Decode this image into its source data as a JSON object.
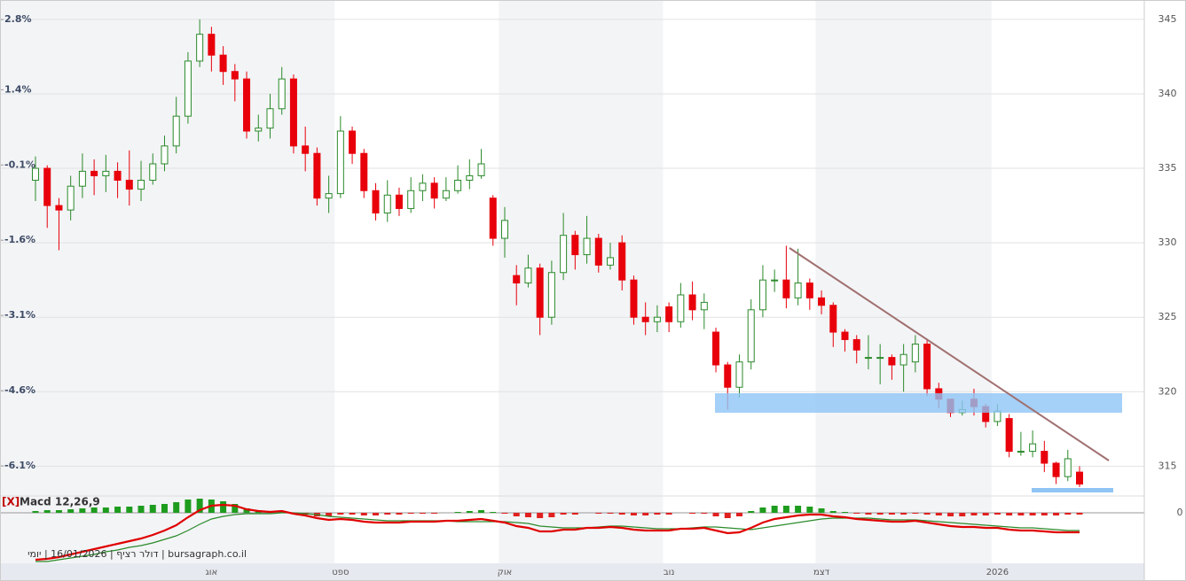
{
  "chart_data": {
    "type": "candlestick",
    "x": [
      null,
      null,
      null,
      null,
      null,
      null,
      null,
      null,
      null,
      null,
      null,
      null,
      null,
      null,
      null,
      "אוג",
      null,
      null,
      null,
      null,
      null,
      null,
      null,
      null,
      null,
      null,
      "ספט",
      null,
      null,
      null,
      null,
      null,
      null,
      null,
      null,
      null,
      null,
      null,
      null,
      null,
      "אוק",
      null,
      null,
      null,
      null,
      null,
      null,
      null,
      null,
      null,
      null,
      null,
      null,
      null,
      "נוב",
      null,
      null,
      null,
      null,
      null,
      null,
      null,
      null,
      null,
      null,
      null,
      null,
      "דצמ",
      null,
      null,
      null,
      null,
      null,
      null,
      null,
      null,
      null,
      null,
      null,
      null,
      null,
      null,
      "2026",
      null,
      null,
      null,
      null,
      null,
      null,
      null
    ],
    "open": [
      334.2,
      335.0,
      332.5,
      332.2,
      333.8,
      334.8,
      334.5,
      334.8,
      334.2,
      333.6,
      334.2,
      335.3,
      336.5,
      338.5,
      342.2,
      344.0,
      342.6,
      341.5,
      341.0,
      337.5,
      337.7,
      339.0,
      341.0,
      336.5,
      336.0,
      333.0,
      333.3,
      337.5,
      336.0,
      333.5,
      332.0,
      333.2,
      332.3,
      333.5,
      334.0,
      333.0,
      333.5,
      334.2,
      334.5,
      333.0,
      330.3,
      327.8,
      327.3,
      328.3,
      325.0,
      328.0,
      330.5,
      329.2,
      330.3,
      328.5,
      330.0,
      327.5,
      325.0,
      324.7,
      325.7,
      324.7,
      326.5,
      325.5,
      324.0,
      321.8,
      320.3,
      322.0,
      325.5,
      327.5,
      327.5,
      326.3,
      327.3,
      326.3,
      325.8,
      324.0,
      323.5,
      322.3,
      322.3,
      322.3,
      321.8,
      322.0,
      323.2,
      320.2,
      319.5,
      318.6,
      319.5,
      319.0,
      318.0,
      318.2,
      316.0,
      316.0,
      316.0,
      315.2,
      314.3,
      314.6
    ],
    "high": [
      335.8,
      335.2,
      333.0,
      334.5,
      336.0,
      335.6,
      335.9,
      335.4,
      336.2,
      335.5,
      336.0,
      337.2,
      339.8,
      342.8,
      345.0,
      344.5,
      343.2,
      342.0,
      341.5,
      338.6,
      340.0,
      341.8,
      341.3,
      337.8,
      336.4,
      334.5,
      338.5,
      337.8,
      336.3,
      334.0,
      334.2,
      333.7,
      334.4,
      334.6,
      334.4,
      334.4,
      335.2,
      335.6,
      336.3,
      333.2,
      332.4,
      328.5,
      329.2,
      328.6,
      328.8,
      332.0,
      330.8,
      331.8,
      330.6,
      330.0,
      330.5,
      327.8,
      326.0,
      325.8,
      326.0,
      327.3,
      327.4,
      326.6,
      324.3,
      322.0,
      322.5,
      326.2,
      328.5,
      328.2,
      329.8,
      329.6,
      327.6,
      326.8,
      326.0,
      324.2,
      323.8,
      323.8,
      323.2,
      322.5,
      323.2,
      323.8,
      323.5,
      320.6,
      319.5,
      319.4,
      320.2,
      319.2,
      319.2,
      318.5,
      317.3,
      317.4,
      316.7,
      315.3,
      316.1,
      315.0
    ],
    "low": [
      332.8,
      331.0,
      329.5,
      331.5,
      333.0,
      333.2,
      333.4,
      333.0,
      332.5,
      332.8,
      333.9,
      334.8,
      336.0,
      338.0,
      341.8,
      341.5,
      340.6,
      339.5,
      337.0,
      336.8,
      337.0,
      338.6,
      336.0,
      334.8,
      332.5,
      332.0,
      333.0,
      335.3,
      333.0,
      331.5,
      331.4,
      331.8,
      332.0,
      332.8,
      332.3,
      332.8,
      333.3,
      333.6,
      334.3,
      329.8,
      329.0,
      325.8,
      327.0,
      323.8,
      324.5,
      327.5,
      328.2,
      328.6,
      328.0,
      328.2,
      326.8,
      324.5,
      323.8,
      324.0,
      324.0,
      324.3,
      324.8,
      324.2,
      321.3,
      318.8,
      319.6,
      321.5,
      325.0,
      326.7,
      325.6,
      325.8,
      325.5,
      325.2,
      323.0,
      322.7,
      321.9,
      321.5,
      320.5,
      320.8,
      320.0,
      321.3,
      319.7,
      318.9,
      318.3,
      318.4,
      318.4,
      317.6,
      317.7,
      315.6,
      315.7,
      315.6,
      314.6,
      313.8,
      314.0,
      313.6
    ],
    "close": [
      335.0,
      332.5,
      332.2,
      333.8,
      334.8,
      334.5,
      334.8,
      334.2,
      333.6,
      334.2,
      335.3,
      336.5,
      338.5,
      342.2,
      344.0,
      342.6,
      341.5,
      341.0,
      337.5,
      337.7,
      339.0,
      341.0,
      336.5,
      336.0,
      333.0,
      333.3,
      337.5,
      336.0,
      333.5,
      332.0,
      333.2,
      332.3,
      333.5,
      334.0,
      333.0,
      333.5,
      334.2,
      334.5,
      335.3,
      330.3,
      331.5,
      327.3,
      328.3,
      325.0,
      328.0,
      330.5,
      329.2,
      330.3,
      328.5,
      329.0,
      327.5,
      325.0,
      324.7,
      325.0,
      324.7,
      326.5,
      325.5,
      326.0,
      321.8,
      320.3,
      322.0,
      325.5,
      327.5,
      327.5,
      326.3,
      327.3,
      326.3,
      325.8,
      324.0,
      323.5,
      322.8,
      322.3,
      322.3,
      321.8,
      322.5,
      323.2,
      320.2,
      319.5,
      318.6,
      318.8,
      319.0,
      318.0,
      318.7,
      316.0,
      316.0,
      316.5,
      315.2,
      314.3,
      315.5,
      313.8
    ],
    "up_color": "#2a8a2a",
    "down_color": "#e8000b",
    "grid": true,
    "ylim": [
      313.0,
      346.3
    ],
    "yticks": [
      315,
      320,
      325,
      330,
      335,
      340,
      345
    ],
    "y2lim": [
      -6.7,
      3.19
    ],
    "y2ticks": [
      {
        "value": -6.1,
        "label": "-6.1%"
      },
      {
        "value": -4.6,
        "label": "-4.6%"
      },
      {
        "value": -3.1,
        "label": "-3.1%"
      },
      {
        "value": -1.6,
        "label": "-1.6%"
      },
      {
        "value": -0.1,
        "label": "-0.1%"
      },
      {
        "value": 1.4,
        "label": "1.4%"
      },
      {
        "value": 2.8,
        "label": "2.8%"
      }
    ],
    "indicator": {
      "close_button": "[X]",
      "title": "Macd 12,26,9",
      "ylim": [
        -5.7,
        1.7
      ],
      "yticks": [
        0
      ],
      "macd": {
        "color": "#e00000",
        "values": [
          -5.3,
          -5.2,
          -5.0,
          -4.7,
          -4.4,
          -4.1,
          -3.8,
          -3.5,
          -3.2,
          -2.9,
          -2.5,
          -2.0,
          -1.4,
          -0.5,
          0.3,
          0.8,
          0.9,
          0.8,
          0.4,
          0.2,
          0.1,
          0.2,
          -0.1,
          -0.3,
          -0.6,
          -0.8,
          -0.7,
          -0.8,
          -1.0,
          -1.1,
          -1.1,
          -1.1,
          -1.0,
          -1.0,
          -1.0,
          -0.9,
          -0.9,
          -0.8,
          -0.7,
          -0.9,
          -1.1,
          -1.5,
          -1.7,
          -2.1,
          -2.1,
          -1.9,
          -1.9,
          -1.7,
          -1.7,
          -1.6,
          -1.7,
          -1.9,
          -2.0,
          -2.0,
          -2.0,
          -1.8,
          -1.8,
          -1.7,
          -2.0,
          -2.3,
          -2.2,
          -1.7,
          -1.1,
          -0.7,
          -0.5,
          -0.3,
          -0.2,
          -0.2,
          -0.4,
          -0.5,
          -0.7,
          -0.8,
          -0.9,
          -1.0,
          -1.0,
          -0.9,
          -1.1,
          -1.3,
          -1.5,
          -1.6,
          -1.6,
          -1.7,
          -1.7,
          -1.9,
          -2.0,
          -2.0,
          -2.1,
          -2.2,
          -2.2,
          -2.2
        ]
      },
      "signal": {
        "color": "#2a8a2a",
        "values": [
          -5.5,
          -5.5,
          -5.3,
          -5.1,
          -4.9,
          -4.7,
          -4.4,
          -4.2,
          -3.9,
          -3.7,
          -3.4,
          -3.0,
          -2.6,
          -2.0,
          -1.3,
          -0.7,
          -0.4,
          -0.2,
          -0.1,
          -0.1,
          -0.1,
          0.0,
          0.0,
          -0.1,
          -0.2,
          -0.4,
          -0.5,
          -0.6,
          -0.7,
          -0.8,
          -0.9,
          -0.9,
          -0.9,
          -0.9,
          -0.9,
          -0.9,
          -1.0,
          -1.0,
          -1.0,
          -1.0,
          -1.0,
          -1.1,
          -1.2,
          -1.5,
          -1.6,
          -1.7,
          -1.7,
          -1.7,
          -1.6,
          -1.5,
          -1.5,
          -1.6,
          -1.7,
          -1.8,
          -1.8,
          -1.8,
          -1.7,
          -1.6,
          -1.6,
          -1.7,
          -1.8,
          -1.9,
          -1.7,
          -1.5,
          -1.3,
          -1.1,
          -0.9,
          -0.7,
          -0.6,
          -0.6,
          -0.6,
          -0.6,
          -0.7,
          -0.8,
          -0.8,
          -0.8,
          -0.9,
          -1.0,
          -1.1,
          -1.2,
          -1.3,
          -1.4,
          -1.5,
          -1.6,
          -1.7,
          -1.7,
          -1.8,
          -1.9,
          -2.0,
          -2.0
        ]
      },
      "histogram": {
        "up_color": "#1e9c1e",
        "down_color": "#e02020",
        "values": [
          0.2,
          0.3,
          0.3,
          0.4,
          0.5,
          0.6,
          0.6,
          0.7,
          0.7,
          0.8,
          0.9,
          1.0,
          1.2,
          1.5,
          1.6,
          1.5,
          1.3,
          1.0,
          0.5,
          0.3,
          0.2,
          0.2,
          -0.1,
          -0.2,
          -0.4,
          -0.4,
          -0.2,
          -0.2,
          -0.3,
          -0.3,
          -0.2,
          -0.2,
          -0.1,
          -0.1,
          -0.1,
          0.0,
          0.1,
          0.2,
          0.3,
          0.1,
          -0.1,
          -0.4,
          -0.5,
          -0.6,
          -0.5,
          -0.2,
          -0.2,
          0.0,
          -0.1,
          -0.1,
          -0.2,
          -0.3,
          -0.3,
          -0.2,
          -0.2,
          0.0,
          -0.1,
          -0.1,
          -0.4,
          -0.6,
          -0.4,
          0.2,
          0.6,
          0.8,
          0.8,
          0.8,
          0.7,
          0.5,
          0.2,
          0.1,
          -0.1,
          -0.2,
          -0.2,
          -0.2,
          -0.2,
          -0.1,
          -0.2,
          -0.3,
          -0.4,
          -0.4,
          -0.3,
          -0.3,
          -0.2,
          -0.3,
          -0.3,
          -0.3,
          -0.3,
          -0.3,
          -0.2,
          -0.2
        ]
      }
    },
    "footer": "bursagraph.co.il | דולר רציף | 16/01/2026 | יומי"
  }
}
